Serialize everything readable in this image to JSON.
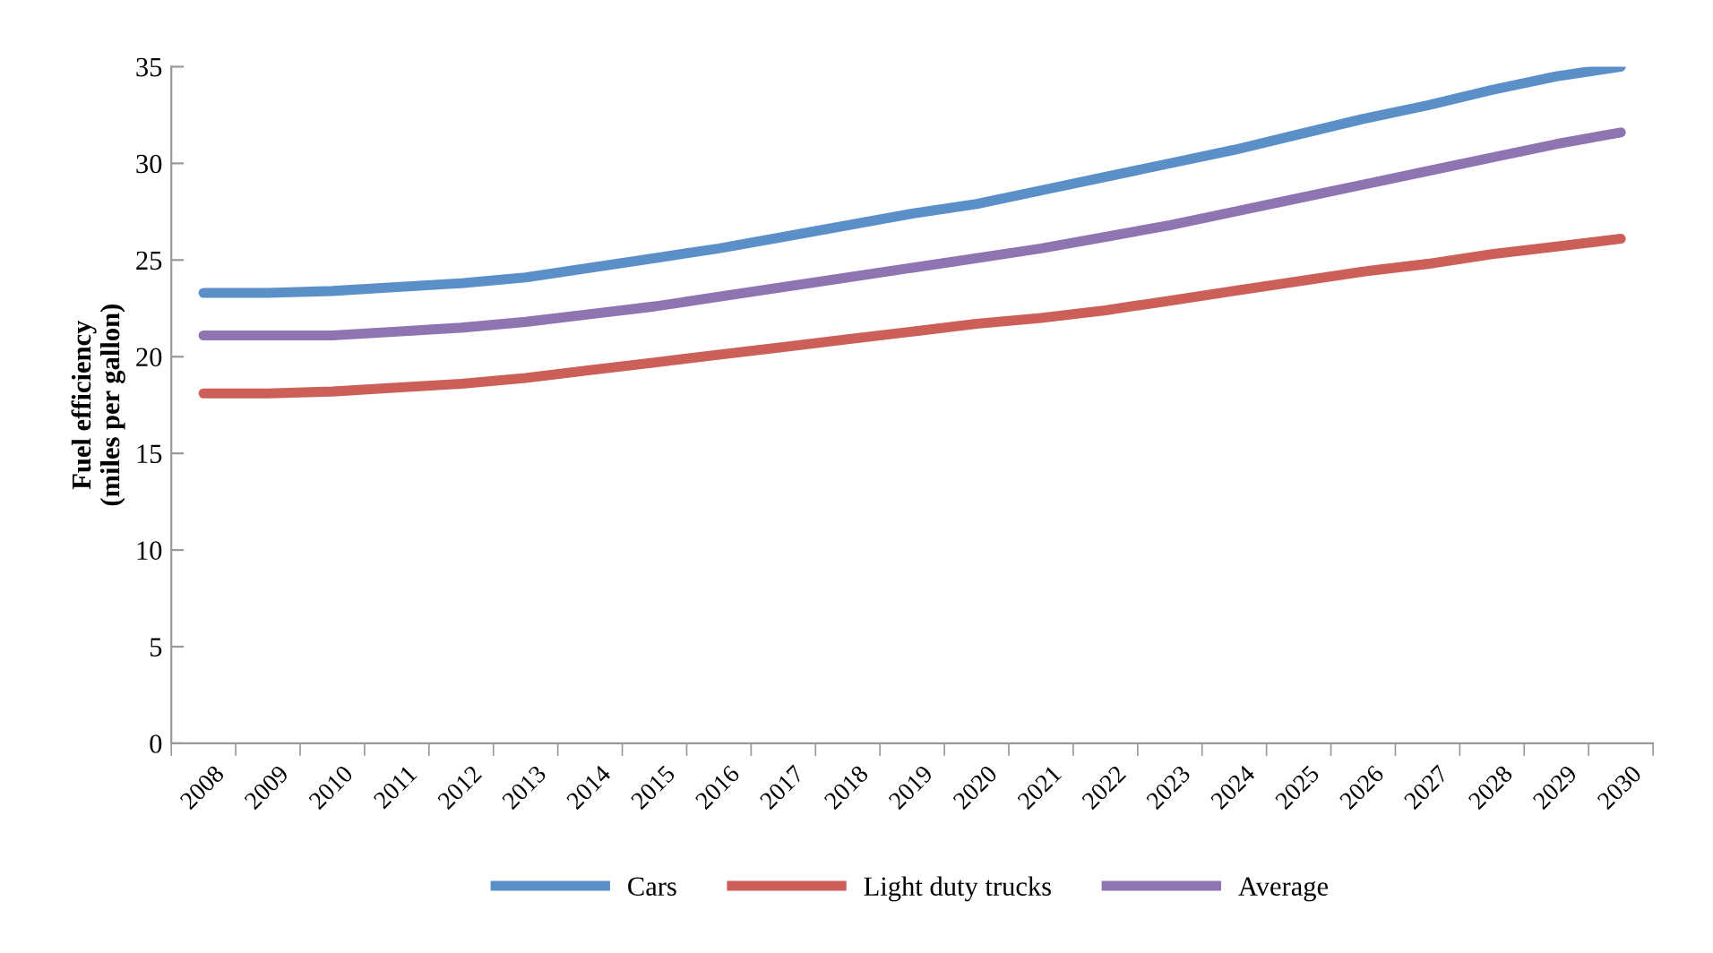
{
  "chart_data": {
    "type": "line",
    "ylabel": "Fuel efficiency\n(miles per gallon)",
    "categories": [
      "2008",
      "2009",
      "2010",
      "2011",
      "2012",
      "2013",
      "2014",
      "2015",
      "2016",
      "2017",
      "2018",
      "2019",
      "2020",
      "2021",
      "2022",
      "2023",
      "2024",
      "2025",
      "2026",
      "2027",
      "2028",
      "2029",
      "2030"
    ],
    "series": [
      {
        "name": "Cars",
        "color": "#5b8fc8",
        "values": [
          23.3,
          23.3,
          23.4,
          23.6,
          23.8,
          24.1,
          24.6,
          25.1,
          25.6,
          26.2,
          26.8,
          27.4,
          27.9,
          28.6,
          29.3,
          30.0,
          30.7,
          31.5,
          32.3,
          33.0,
          33.8,
          34.5,
          35.0
        ]
      },
      {
        "name": "Light duty trucks",
        "color": "#cc5f58",
        "values": [
          18.1,
          18.1,
          18.2,
          18.4,
          18.6,
          18.9,
          19.3,
          19.7,
          20.1,
          20.5,
          20.9,
          21.3,
          21.7,
          22.0,
          22.4,
          22.9,
          23.4,
          23.9,
          24.4,
          24.8,
          25.3,
          25.7,
          26.1
        ]
      },
      {
        "name": "Average",
        "color": "#8e74b0",
        "values": [
          21.1,
          21.1,
          21.1,
          21.3,
          21.5,
          21.8,
          22.2,
          22.6,
          23.1,
          23.6,
          24.1,
          24.6,
          25.1,
          25.6,
          26.2,
          26.8,
          27.5,
          28.2,
          28.9,
          29.6,
          30.3,
          31.0,
          31.6
        ]
      }
    ],
    "ylim": [
      0,
      35
    ],
    "yticks": [
      0,
      5,
      10,
      15,
      20,
      25,
      30,
      35
    ],
    "grid": false,
    "legend": "bottom",
    "marker": "none",
    "line_style": "solid"
  }
}
